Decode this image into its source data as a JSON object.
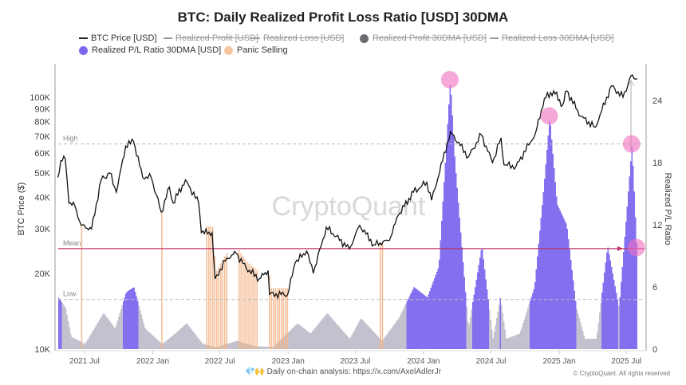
{
  "title": "BTC: Daily Realized Profit Loss Ratio [USD] 30DMA",
  "legend": [
    {
      "label": "BTC Price [USD]",
      "kind": "line",
      "color": "#222222",
      "active": true
    },
    {
      "label": "Realized Profit [USD]",
      "kind": "line",
      "color": "#999999",
      "active": false
    },
    {
      "label": "Realized Loss [USD]",
      "kind": "line",
      "color": "#999999",
      "active": false
    },
    {
      "label": "Realized Profit 30DMA [USD]",
      "kind": "dot",
      "color": "#6b6b70",
      "active": false
    },
    {
      "label": "Realized Loss 30DMA [USD]",
      "kind": "line",
      "color": "#999999",
      "active": false
    },
    {
      "label": "Realized P/L Ratio 30DMA [USD]",
      "kind": "dot",
      "color": "#7b68ee",
      "active": true
    },
    {
      "label": "Panic Selling",
      "kind": "dot",
      "color": "#f5c4a0",
      "active": true
    }
  ],
  "watermark": "CryptoQuant",
  "footer": {
    "icons": "💎🙌",
    "text": "Daily on-chain analysis: ",
    "link": "https://x.com/AxelAdlerJr",
    "copyright": "© CryptoQuant. All rights reserved"
  },
  "chart_data": {
    "type": "line+bar",
    "title": "BTC: Daily Realized Profit Loss Ratio [USD] 30DMA",
    "ylabel_left": "BTC Price ($)",
    "ylabel_right": "Realized P/L Ratio",
    "x_range": [
      "2021-04-19",
      "2025-08-19"
    ],
    "x_ticks": [
      "2021 Jul",
      "2022 Jan",
      "2022 Jul",
      "2023 Jan",
      "2023 Jul",
      "2024 Jan",
      "2024 Jul",
      "2025 Jan",
      "2025 Jul"
    ],
    "x_tick_dates": [
      "2021-07-01",
      "2022-01-01",
      "2022-07-01",
      "2023-01-01",
      "2023-07-01",
      "2024-01-01",
      "2024-07-01",
      "2025-01-01",
      "2025-07-01"
    ],
    "y_left": {
      "scale": "log",
      "range": [
        10000,
        140000
      ],
      "ticks": [
        10000,
        20000,
        30000,
        40000,
        50000,
        60000,
        70000,
        80000,
        90000,
        100000
      ],
      "tick_labels": [
        "10K",
        "20K",
        "30K",
        "40K",
        "50K",
        "60K",
        "70K",
        "80K",
        "90K",
        "100K"
      ]
    },
    "y_right": {
      "scale": "linear",
      "range": [
        0,
        26
      ],
      "ticks": [
        0,
        6,
        12,
        18,
        24
      ]
    },
    "reference_lines": [
      {
        "label": "High",
        "value": 19.8,
        "color": "#bbbbbb"
      },
      {
        "label": "Mean",
        "value": 9.7,
        "color": "#c0306a"
      },
      {
        "label": "Low",
        "value": 4.8,
        "color": "#bbbbbb"
      }
    ],
    "purple_threshold": 4.5,
    "series": [
      {
        "name": "BTC Price [USD]",
        "color": "#111111",
        "points": [
          [
            "2021-04-20",
            48000
          ],
          [
            "2021-04-28",
            56000
          ],
          [
            "2021-05-10",
            57000
          ],
          [
            "2021-05-20",
            38000
          ],
          [
            "2021-06-05",
            37000
          ],
          [
            "2021-06-22",
            31000
          ],
          [
            "2021-07-20",
            30000
          ],
          [
            "2021-08-15",
            47000
          ],
          [
            "2021-09-07",
            50000
          ],
          [
            "2021-09-25",
            42000
          ],
          [
            "2021-10-20",
            64000
          ],
          [
            "2021-11-10",
            67000
          ],
          [
            "2021-12-05",
            48000
          ],
          [
            "2021-12-28",
            48000
          ],
          [
            "2022-01-24",
            35000
          ],
          [
            "2022-02-15",
            44000
          ],
          [
            "2022-02-25",
            38000
          ],
          [
            "2022-03-30",
            47000
          ],
          [
            "2022-05-05",
            38000
          ],
          [
            "2022-05-12",
            29000
          ],
          [
            "2022-06-10",
            29000
          ],
          [
            "2022-06-18",
            19000
          ],
          [
            "2022-07-20",
            23000
          ],
          [
            "2022-08-14",
            24000
          ],
          [
            "2022-09-10",
            21000
          ],
          [
            "2022-10-15",
            19000
          ],
          [
            "2022-11-08",
            20500
          ],
          [
            "2022-11-12",
            16500
          ],
          [
            "2022-12-31",
            16500
          ],
          [
            "2023-01-20",
            22000
          ],
          [
            "2023-02-20",
            24500
          ],
          [
            "2023-03-10",
            20000
          ],
          [
            "2023-04-14",
            30500
          ],
          [
            "2023-06-15",
            25000
          ],
          [
            "2023-07-13",
            31000
          ],
          [
            "2023-08-20",
            26000
          ],
          [
            "2023-10-01",
            27000
          ],
          [
            "2023-10-25",
            34000
          ],
          [
            "2023-12-05",
            42000
          ],
          [
            "2024-01-10",
            46000
          ],
          [
            "2024-01-23",
            39000
          ],
          [
            "2024-03-14",
            73000
          ],
          [
            "2024-05-01",
            58000
          ],
          [
            "2024-06-05",
            71000
          ],
          [
            "2024-07-05",
            55000
          ],
          [
            "2024-07-28",
            69000
          ],
          [
            "2024-08-05",
            54000
          ],
          [
            "2024-09-06",
            53000
          ],
          [
            "2024-10-29",
            72000
          ],
          [
            "2024-11-22",
            99000
          ],
          [
            "2024-12-17",
            106000
          ],
          [
            "2025-01-10",
            93000
          ],
          [
            "2025-01-21",
            106000
          ],
          [
            "2025-02-28",
            84000
          ],
          [
            "2025-04-08",
            76000
          ],
          [
            "2025-05-22",
            111000
          ],
          [
            "2025-06-22",
            100000
          ],
          [
            "2025-07-14",
            122000
          ],
          [
            "2025-07-25",
            118000
          ],
          [
            "2025-07-30",
            118500
          ]
        ]
      },
      {
        "name": "Realized P/L Ratio 30DMA [USD]",
        "color": "#7b68ee",
        "points": [
          [
            "2021-04-20",
            5
          ],
          [
            "2021-05-10",
            4
          ],
          [
            "2021-05-25",
            1.2
          ],
          [
            "2021-07-01",
            0.5
          ],
          [
            "2021-08-20",
            3.5
          ],
          [
            "2021-09-20",
            2
          ],
          [
            "2021-10-20",
            5.5
          ],
          [
            "2021-11-10",
            6
          ],
          [
            "2021-12-10",
            2
          ],
          [
            "2022-01-25",
            0.5
          ],
          [
            "2022-03-01",
            1.5
          ],
          [
            "2022-04-01",
            2.5
          ],
          [
            "2022-05-15",
            0.5
          ],
          [
            "2022-06-20",
            0.2
          ],
          [
            "2022-08-15",
            0.8
          ],
          [
            "2022-10-01",
            0.3
          ],
          [
            "2022-11-20",
            0.2
          ],
          [
            "2023-01-25",
            2.5
          ],
          [
            "2023-03-01",
            1.5
          ],
          [
            "2023-04-15",
            3.5
          ],
          [
            "2023-06-15",
            1
          ],
          [
            "2023-07-15",
            3
          ],
          [
            "2023-09-10",
            0.8
          ],
          [
            "2023-10-25",
            3
          ],
          [
            "2023-12-05",
            6
          ],
          [
            "2024-01-10",
            5
          ],
          [
            "2024-02-10",
            8
          ],
          [
            "2024-03-12",
            26
          ],
          [
            "2024-03-25",
            18
          ],
          [
            "2024-04-30",
            2
          ],
          [
            "2024-06-05",
            10
          ],
          [
            "2024-07-05",
            1
          ],
          [
            "2024-07-25",
            5
          ],
          [
            "2024-08-10",
            1
          ],
          [
            "2024-09-15",
            1.5
          ],
          [
            "2024-10-25",
            6
          ],
          [
            "2024-11-20",
            16
          ],
          [
            "2024-12-05",
            22.5
          ],
          [
            "2024-12-25",
            14
          ],
          [
            "2025-01-20",
            12
          ],
          [
            "2025-02-15",
            4
          ],
          [
            "2025-03-10",
            1
          ],
          [
            "2025-04-10",
            1
          ],
          [
            "2025-05-10",
            10
          ],
          [
            "2025-06-10",
            4
          ],
          [
            "2025-07-15",
            19.8
          ],
          [
            "2025-07-28",
            9.8
          ]
        ]
      }
    ],
    "panic_selling": {
      "ranges": [
        [
          "2022-05-25",
          "2022-07-20"
        ],
        [
          "2022-08-20",
          "2022-10-10"
        ],
        [
          "2022-11-10",
          "2022-12-31"
        ]
      ],
      "single_days": [
        "2021-06-22",
        "2022-01-24",
        "2023-09-05",
        "2023-09-11"
      ],
      "color": "#f5b58a"
    },
    "highlights": [
      {
        "date": "2024-03-12",
        "value": 26
      },
      {
        "date": "2024-12-05",
        "value": 22.5
      },
      {
        "date": "2025-07-15",
        "value": 19.8
      },
      {
        "date": "2025-07-28",
        "value": 9.8
      }
    ]
  }
}
